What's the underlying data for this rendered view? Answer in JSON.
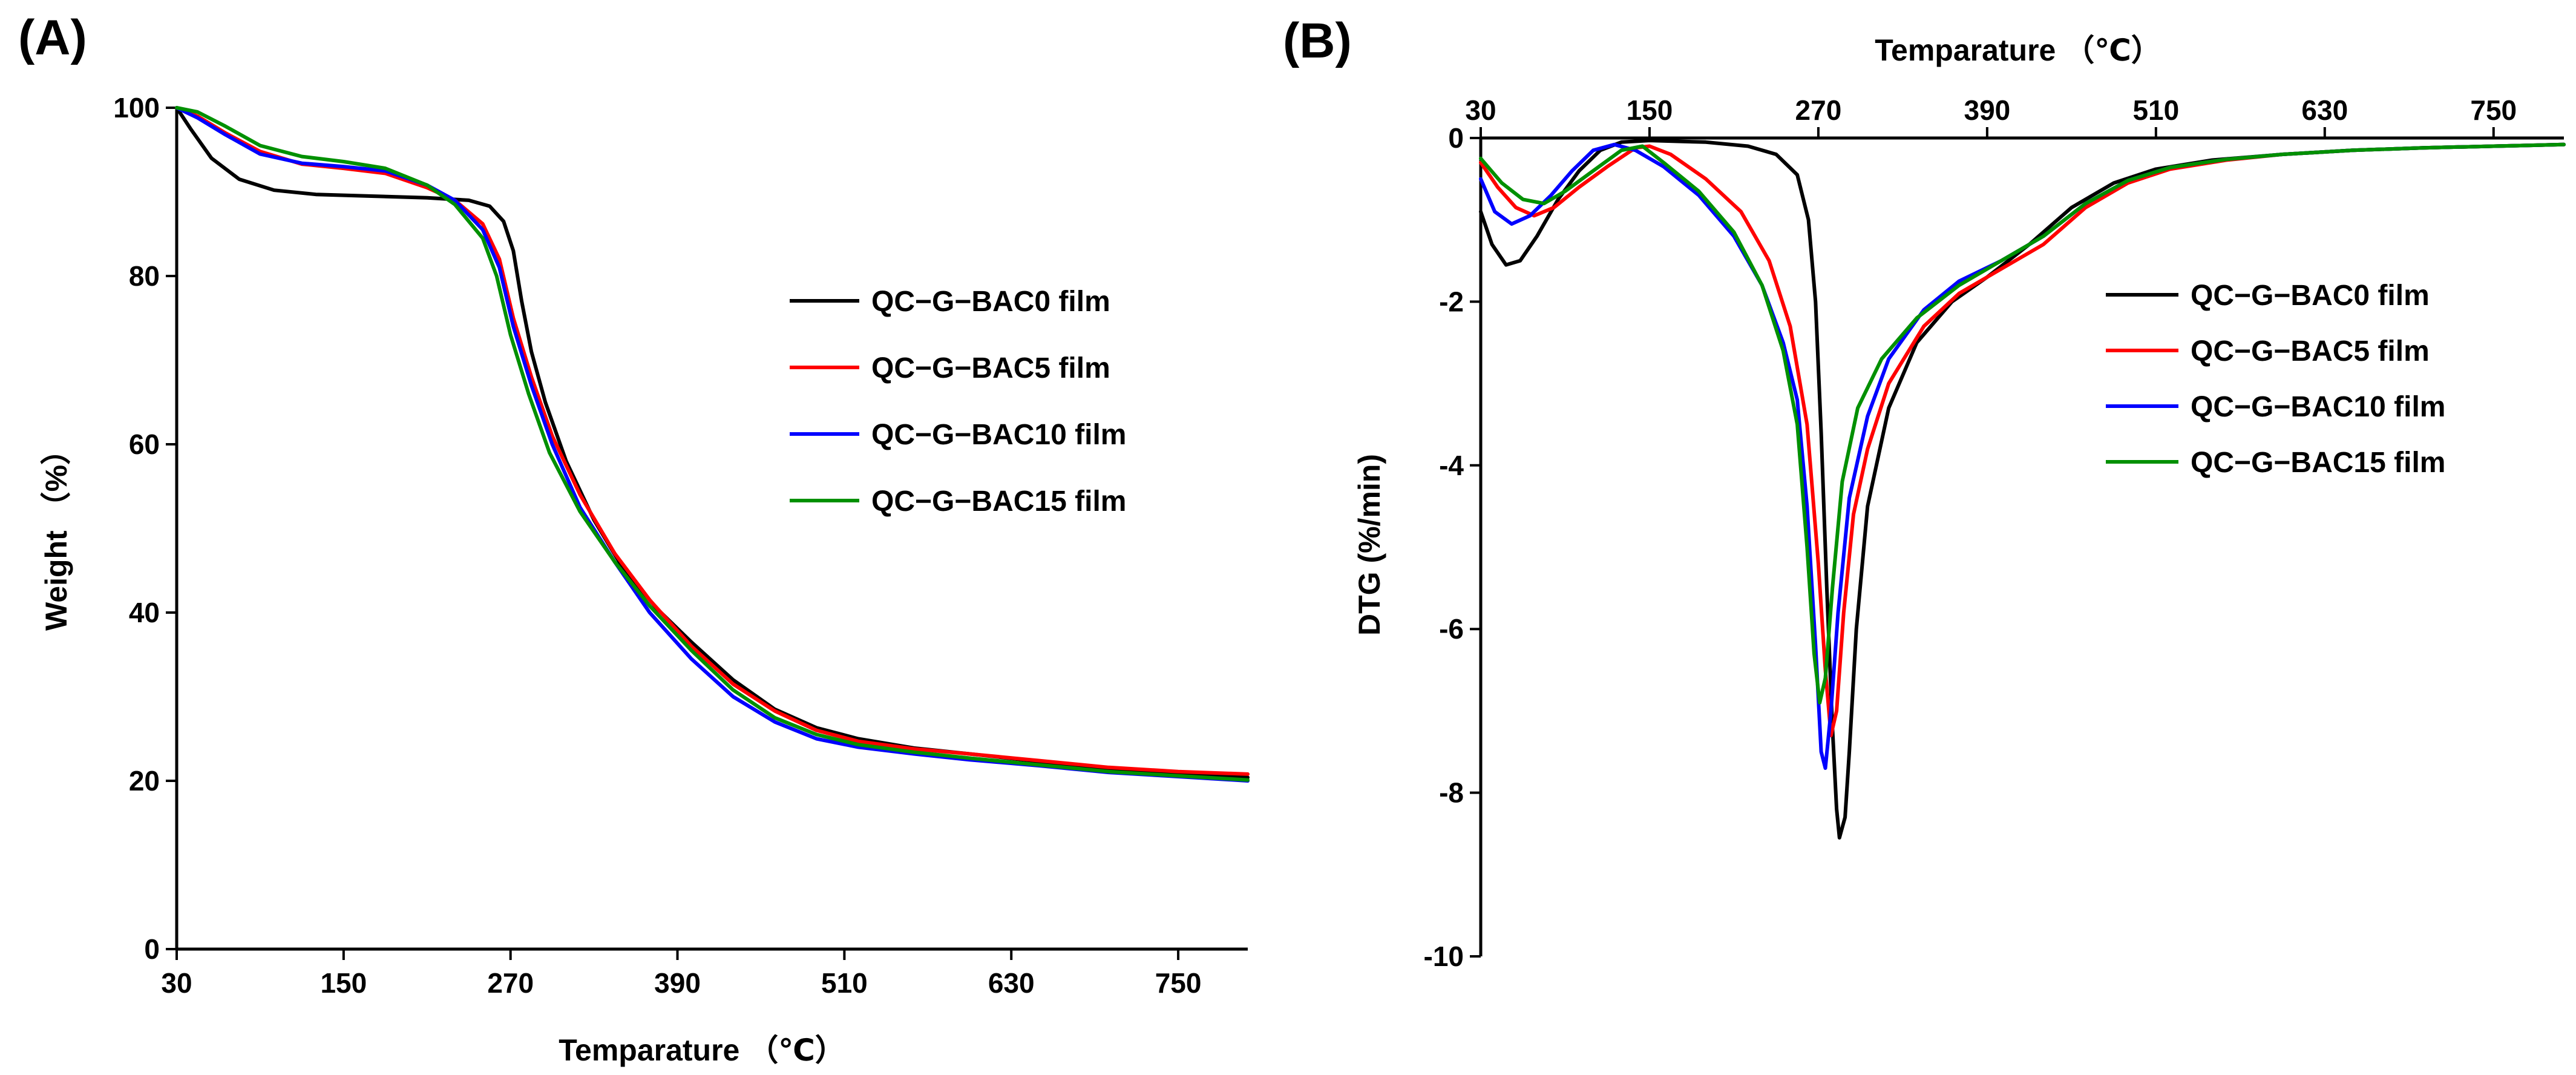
{
  "colors": {
    "series": [
      "#000000",
      "#ff0000",
      "#0000ff",
      "#009000"
    ],
    "axis": "#000000",
    "background": "#ffffff"
  },
  "chart_data": [
    {
      "type": "line",
      "panel_label": "(A)",
      "title": "",
      "xlabel": "Temparature （℃）",
      "ylabel": "Weight （%）",
      "xlim": [
        30,
        800
      ],
      "ylim": [
        0,
        100
      ],
      "xticks": [
        30,
        150,
        270,
        390,
        510,
        630,
        750
      ],
      "xtick_labels": [
        "30",
        "150",
        "270",
        "390",
        "510",
        "630",
        "750"
      ],
      "yticks": [
        0,
        20,
        40,
        60,
        80,
        100
      ],
      "ytick_labels": [
        "0",
        "20",
        "40",
        "60",
        "80",
        "100"
      ],
      "xaxis_position": "bottom",
      "legend_position": "right",
      "grid": false,
      "series": [
        {
          "name": "QC−G−BAC0  film",
          "points": [
            [
              30,
              100
            ],
            [
              40,
              97.5
            ],
            [
              55,
              94
            ],
            [
              75,
              91.5
            ],
            [
              100,
              90.2
            ],
            [
              130,
              89.7
            ],
            [
              170,
              89.5
            ],
            [
              210,
              89.3
            ],
            [
              240,
              89
            ],
            [
              255,
              88.3
            ],
            [
              265,
              86.5
            ],
            [
              272,
              83
            ],
            [
              278,
              77
            ],
            [
              285,
              71
            ],
            [
              295,
              65
            ],
            [
              310,
              58
            ],
            [
              330,
              51
            ],
            [
              350,
              45.5
            ],
            [
              375,
              40.5
            ],
            [
              400,
              36.5
            ],
            [
              430,
              32
            ],
            [
              460,
              28.5
            ],
            [
              490,
              26.3
            ],
            [
              520,
              25
            ],
            [
              560,
              23.9
            ],
            [
              600,
              23.2
            ],
            [
              650,
              22.3
            ],
            [
              700,
              21.5
            ],
            [
              750,
              20.9
            ],
            [
              800,
              20.4
            ]
          ]
        },
        {
          "name": "QC−G−BAC5  film",
          "points": [
            [
              30,
              100
            ],
            [
              45,
              99
            ],
            [
              65,
              97
            ],
            [
              90,
              94.8
            ],
            [
              120,
              93.3
            ],
            [
              150,
              92.8
            ],
            [
              180,
              92.2
            ],
            [
              210,
              90.5
            ],
            [
              230,
              89
            ],
            [
              250,
              86.2
            ],
            [
              262,
              82
            ],
            [
              272,
              75
            ],
            [
              285,
              68
            ],
            [
              300,
              61
            ],
            [
              320,
              54
            ],
            [
              345,
              47
            ],
            [
              370,
              41.5
            ],
            [
              400,
              36
            ],
            [
              430,
              31.5
            ],
            [
              460,
              28.3
            ],
            [
              490,
              26
            ],
            [
              520,
              24.7
            ],
            [
              560,
              23.8
            ],
            [
              600,
              23.2
            ],
            [
              650,
              22.4
            ],
            [
              700,
              21.6
            ],
            [
              750,
              21.1
            ],
            [
              800,
              20.8
            ]
          ]
        },
        {
          "name": "QC−G−BAC10  film",
          "points": [
            [
              30,
              100
            ],
            [
              45,
              98.8
            ],
            [
              65,
              96.8
            ],
            [
              90,
              94.5
            ],
            [
              120,
              93.4
            ],
            [
              150,
              93
            ],
            [
              180,
              92.5
            ],
            [
              210,
              90.8
            ],
            [
              230,
              89
            ],
            [
              250,
              85.5
            ],
            [
              262,
              81
            ],
            [
              272,
              74
            ],
            [
              285,
              67
            ],
            [
              300,
              60
            ],
            [
              320,
              52.5
            ],
            [
              345,
              46
            ],
            [
              370,
              40
            ],
            [
              400,
              34.5
            ],
            [
              430,
              30
            ],
            [
              460,
              27
            ],
            [
              490,
              25
            ],
            [
              520,
              24
            ],
            [
              560,
              23.2
            ],
            [
              600,
              22.5
            ],
            [
              650,
              21.8
            ],
            [
              700,
              21
            ],
            [
              750,
              20.5
            ],
            [
              800,
              20
            ]
          ]
        },
        {
          "name": "QC−G−BAC15  film",
          "points": [
            [
              30,
              100
            ],
            [
              45,
              99.5
            ],
            [
              65,
              97.8
            ],
            [
              90,
              95.5
            ],
            [
              120,
              94.2
            ],
            [
              150,
              93.6
            ],
            [
              180,
              92.8
            ],
            [
              210,
              90.8
            ],
            [
              230,
              88.5
            ],
            [
              250,
              84.5
            ],
            [
              260,
              80
            ],
            [
              270,
              73
            ],
            [
              283,
              66
            ],
            [
              298,
              59
            ],
            [
              320,
              52
            ],
            [
              345,
              46
            ],
            [
              370,
              40.8
            ],
            [
              400,
              35.5
            ],
            [
              430,
              30.8
            ],
            [
              460,
              27.5
            ],
            [
              490,
              25.5
            ],
            [
              520,
              24.3
            ],
            [
              560,
              23.4
            ],
            [
              600,
              22.7
            ],
            [
              650,
              21.9
            ],
            [
              700,
              21.1
            ],
            [
              750,
              20.6
            ],
            [
              800,
              20.1
            ]
          ]
        }
      ]
    },
    {
      "type": "line",
      "panel_label": "(B)",
      "title": "",
      "xlabel": "Temparature （℃）",
      "ylabel": "DTG (%/min)",
      "xlim": [
        30,
        800
      ],
      "ylim": [
        -10,
        0
      ],
      "xticks": [
        30,
        150,
        270,
        390,
        510,
        630,
        750
      ],
      "xtick_labels": [
        "30",
        "150",
        "270",
        "390",
        "510",
        "630",
        "750"
      ],
      "yticks": [
        -10,
        -8,
        -6,
        -4,
        -2,
        0
      ],
      "ytick_labels": [
        "-10",
        "-8",
        "-6",
        "-4",
        "-2",
        "0"
      ],
      "xaxis_position": "top",
      "legend_position": "right",
      "grid": false,
      "series": [
        {
          "name": "QC−G−BAC0  film",
          "points": [
            [
              30,
              -0.9
            ],
            [
              38,
              -1.3
            ],
            [
              48,
              -1.55
            ],
            [
              58,
              -1.5
            ],
            [
              70,
              -1.2
            ],
            [
              85,
              -0.75
            ],
            [
              100,
              -0.4
            ],
            [
              115,
              -0.15
            ],
            [
              130,
              -0.05
            ],
            [
              150,
              -0.03
            ],
            [
              190,
              -0.05
            ],
            [
              220,
              -0.1
            ],
            [
              240,
              -0.2
            ],
            [
              255,
              -0.45
            ],
            [
              263,
              -1
            ],
            [
              268,
              -2
            ],
            [
              272,
              -3.6
            ],
            [
              276,
              -5.5
            ],
            [
              280,
              -7.2
            ],
            [
              283,
              -8.2
            ],
            [
              285,
              -8.55
            ],
            [
              289,
              -8.3
            ],
            [
              292,
              -7.5
            ],
            [
              297,
              -6
            ],
            [
              305,
              -4.5
            ],
            [
              320,
              -3.3
            ],
            [
              340,
              -2.5
            ],
            [
              365,
              -2
            ],
            [
              390,
              -1.7
            ],
            [
              420,
              -1.3
            ],
            [
              450,
              -0.85
            ],
            [
              480,
              -0.55
            ],
            [
              510,
              -0.38
            ],
            [
              550,
              -0.27
            ],
            [
              600,
              -0.2
            ],
            [
              650,
              -0.15
            ],
            [
              700,
              -0.12
            ],
            [
              750,
              -0.1
            ],
            [
              800,
              -0.08
            ]
          ]
        },
        {
          "name": "QC−G−BAC5  film",
          "points": [
            [
              30,
              -0.3
            ],
            [
              42,
              -0.6
            ],
            [
              55,
              -0.85
            ],
            [
              68,
              -0.95
            ],
            [
              82,
              -0.85
            ],
            [
              100,
              -0.6
            ],
            [
              120,
              -0.35
            ],
            [
              140,
              -0.12
            ],
            [
              150,
              -0.1
            ],
            [
              165,
              -0.2
            ],
            [
              190,
              -0.5
            ],
            [
              215,
              -0.9
            ],
            [
              235,
              -1.5
            ],
            [
              250,
              -2.3
            ],
            [
              262,
              -3.5
            ],
            [
              270,
              -5.2
            ],
            [
              275,
              -6.5
            ],
            [
              279,
              -7.3
            ],
            [
              283,
              -7
            ],
            [
              288,
              -5.8
            ],
            [
              295,
              -4.6
            ],
            [
              305,
              -3.8
            ],
            [
              320,
              -3
            ],
            [
              345,
              -2.3
            ],
            [
              370,
              -1.9
            ],
            [
              400,
              -1.6
            ],
            [
              430,
              -1.3
            ],
            [
              460,
              -0.85
            ],
            [
              490,
              -0.55
            ],
            [
              520,
              -0.38
            ],
            [
              560,
              -0.27
            ],
            [
              600,
              -0.2
            ],
            [
              650,
              -0.15
            ],
            [
              700,
              -0.12
            ],
            [
              750,
              -0.1
            ],
            [
              800,
              -0.08
            ]
          ]
        },
        {
          "name": "QC−G−BAC10  film",
          "points": [
            [
              30,
              -0.5
            ],
            [
              40,
              -0.9
            ],
            [
              52,
              -1.05
            ],
            [
              65,
              -0.95
            ],
            [
              80,
              -0.7
            ],
            [
              95,
              -0.4
            ],
            [
              110,
              -0.15
            ],
            [
              125,
              -0.08
            ],
            [
              140,
              -0.15
            ],
            [
              160,
              -0.35
            ],
            [
              185,
              -0.7
            ],
            [
              210,
              -1.2
            ],
            [
              230,
              -1.8
            ],
            [
              245,
              -2.5
            ],
            [
              255,
              -3.2
            ],
            [
              262,
              -4.5
            ],
            [
              268,
              -6.2
            ],
            [
              272,
              -7.5
            ],
            [
              275,
              -7.7
            ],
            [
              279,
              -7
            ],
            [
              284,
              -5.8
            ],
            [
              292,
              -4.4
            ],
            [
              305,
              -3.4
            ],
            [
              320,
              -2.7
            ],
            [
              345,
              -2.1
            ],
            [
              370,
              -1.75
            ],
            [
              400,
              -1.5
            ],
            [
              430,
              -1.2
            ],
            [
              460,
              -0.8
            ],
            [
              490,
              -0.52
            ],
            [
              520,
              -0.36
            ],
            [
              560,
              -0.26
            ],
            [
              600,
              -0.2
            ],
            [
              650,
              -0.15
            ],
            [
              700,
              -0.12
            ],
            [
              750,
              -0.1
            ],
            [
              800,
              -0.08
            ]
          ]
        },
        {
          "name": "QC−G−BAC15  film",
          "points": [
            [
              30,
              -0.25
            ],
            [
              45,
              -0.55
            ],
            [
              60,
              -0.75
            ],
            [
              75,
              -0.8
            ],
            [
              90,
              -0.65
            ],
            [
              110,
              -0.4
            ],
            [
              130,
              -0.15
            ],
            [
              145,
              -0.1
            ],
            [
              160,
              -0.3
            ],
            [
              185,
              -0.65
            ],
            [
              210,
              -1.15
            ],
            [
              230,
              -1.8
            ],
            [
              245,
              -2.6
            ],
            [
              255,
              -3.5
            ],
            [
              262,
              -5
            ],
            [
              267,
              -6.3
            ],
            [
              271,
              -6.9
            ],
            [
              275,
              -6.6
            ],
            [
              280,
              -5.5
            ],
            [
              287,
              -4.2
            ],
            [
              298,
              -3.3
            ],
            [
              315,
              -2.7
            ],
            [
              340,
              -2.2
            ],
            [
              370,
              -1.8
            ],
            [
              400,
              -1.5
            ],
            [
              430,
              -1.2
            ],
            [
              460,
              -0.8
            ],
            [
              490,
              -0.52
            ],
            [
              520,
              -0.36
            ],
            [
              560,
              -0.26
            ],
            [
              600,
              -0.2
            ],
            [
              650,
              -0.15
            ],
            [
              700,
              -0.12
            ],
            [
              750,
              -0.1
            ],
            [
              800,
              -0.08
            ]
          ]
        }
      ]
    }
  ]
}
